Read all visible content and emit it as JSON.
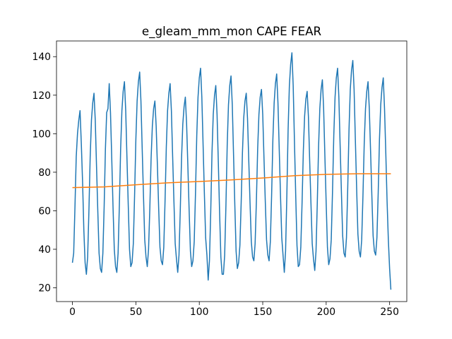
{
  "chart_data": {
    "type": "line",
    "title": "e_gleam_mm_mon CAPE FEAR",
    "xlim": [
      -12.55,
      263.55
    ],
    "ylim": [
      12.85,
      148.15
    ],
    "xticks": [
      0,
      50,
      100,
      150,
      200,
      250
    ],
    "yticks": [
      20,
      40,
      60,
      80,
      100,
      120,
      140
    ],
    "series": [
      {
        "color": "#1f77b4",
        "x": [
          0,
          1,
          2,
          3,
          4,
          5,
          6,
          7,
          8,
          9,
          10,
          11,
          12,
          13,
          14,
          15,
          16,
          17,
          18,
          19,
          20,
          21,
          22,
          23,
          24,
          25,
          26,
          27,
          28,
          29,
          30,
          31,
          32,
          33,
          34,
          35,
          36,
          37,
          38,
          39,
          40,
          41,
          42,
          43,
          44,
          45,
          46,
          47,
          48,
          49,
          50,
          51,
          52,
          53,
          54,
          55,
          56,
          57,
          58,
          59,
          60,
          61,
          62,
          63,
          64,
          65,
          66,
          67,
          68,
          69,
          70,
          71,
          72,
          73,
          74,
          75,
          76,
          77,
          78,
          79,
          80,
          81,
          82,
          83,
          84,
          85,
          86,
          87,
          88,
          89,
          90,
          91,
          92,
          93,
          94,
          95,
          96,
          97,
          98,
          99,
          100,
          101,
          102,
          103,
          104,
          105,
          106,
          107,
          108,
          109,
          110,
          111,
          112,
          113,
          114,
          115,
          116,
          117,
          118,
          119,
          120,
          121,
          122,
          123,
          124,
          125,
          126,
          127,
          128,
          129,
          130,
          131,
          132,
          133,
          134,
          135,
          136,
          137,
          138,
          139,
          140,
          141,
          142,
          143,
          144,
          145,
          146,
          147,
          148,
          149,
          150,
          151,
          152,
          153,
          154,
          155,
          156,
          157,
          158,
          159,
          160,
          161,
          162,
          163,
          164,
          165,
          166,
          167,
          168,
          169,
          170,
          171,
          172,
          173,
          174,
          175,
          176,
          177,
          178,
          179,
          180,
          181,
          182,
          183,
          184,
          185,
          186,
          187,
          188,
          189,
          190,
          191,
          192,
          193,
          194,
          195,
          196,
          197,
          198,
          199,
          200,
          201,
          202,
          203,
          204,
          205,
          206,
          207,
          208,
          209,
          210,
          211,
          212,
          213,
          214,
          215,
          216,
          217,
          218,
          219,
          220,
          221,
          222,
          223,
          224,
          225,
          226,
          227,
          228,
          229,
          230,
          231,
          232,
          233,
          234,
          235,
          236,
          237,
          238,
          239,
          240,
          241,
          242,
          243,
          244,
          245,
          246,
          247,
          248,
          249,
          250,
          251
        ],
        "values": [
          33,
          38,
          62,
          88,
          100,
          107,
          112,
          95,
          75,
          50,
          33,
          27,
          36,
          60,
          88,
          107,
          116,
          121,
          107,
          83,
          60,
          38,
          30,
          28,
          38,
          62,
          92,
          111,
          113,
          126,
          111,
          87,
          62,
          40,
          31,
          28,
          38,
          63,
          92,
          112,
          122,
          127,
          112,
          87,
          63,
          40,
          31,
          33,
          43,
          68,
          97,
          117,
          127,
          132,
          117,
          92,
          68,
          45,
          36,
          31,
          40,
          61,
          87,
          104,
          113,
          117,
          104,
          83,
          61,
          41,
          34,
          32,
          41,
          65,
          93,
          112,
          121,
          126,
          112,
          88,
          65,
          43,
          35,
          28,
          37,
          60,
          87,
          105,
          114,
          119,
          105,
          83,
          60,
          39,
          31,
          34,
          44,
          69,
          99,
          119,
          129,
          134,
          119,
          94,
          69,
          46,
          37,
          24,
          34,
          59,
          90,
          110,
          120,
          125,
          110,
          85,
          59,
          36,
          27,
          27,
          37,
          63,
          94,
          115,
          125,
          130,
          115,
          89,
          63,
          39,
          30,
          33,
          42,
          64,
          90,
          108,
          117,
          121,
          108,
          86,
          64,
          44,
          36,
          34,
          43,
          65,
          92,
          110,
          119,
          123,
          110,
          87,
          65,
          45,
          37,
          34,
          44,
          68,
          97,
          116,
          126,
          131,
          116,
          92,
          68,
          46,
          37,
          28,
          39,
          68,
          102,
          125,
          136,
          142,
          125,
          96,
          68,
          42,
          31,
          32,
          41,
          64,
          91,
          109,
          118,
          122,
          109,
          86,
          64,
          43,
          35,
          29,
          39,
          64,
          93,
          113,
          123,
          128,
          113,
          88,
          64,
          41,
          32,
          35,
          45,
          70,
          99,
          119,
          129,
          134,
          119,
          94,
          70,
          47,
          38,
          36,
          46,
          72,
          102,
          123,
          133,
          138,
          123,
          97,
          72,
          48,
          39,
          36,
          45,
          68,
          95,
          113,
          122,
          127,
          113,
          91,
          68,
          47,
          39,
          37,
          46,
          69,
          97,
          115,
          124,
          129,
          113,
          90,
          65,
          45,
          30,
          19
        ]
      },
      {
        "color": "#ff7f0e",
        "x": [
          0,
          25,
          50,
          75,
          100,
          125,
          150,
          175,
          200,
          225,
          251
        ],
        "values": [
          72,
          72.4,
          73.5,
          74.5,
          75.2,
          76,
          77,
          78.2,
          78.9,
          79.2,
          79.2
        ]
      }
    ]
  }
}
